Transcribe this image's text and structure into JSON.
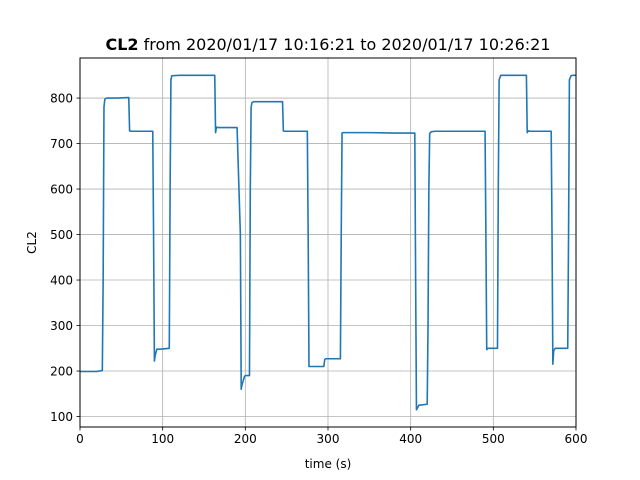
{
  "chart_data": {
    "type": "line",
    "title_bold": "CL2",
    "title_rest": " from 2020/01/17 10:16:21 to 2020/01/17 10:26:21",
    "xlabel": "time (s)",
    "ylabel": "CL2",
    "xlim": [
      0,
      600
    ],
    "ylim": [
      77,
      888
    ],
    "grid": true,
    "line_color": "#1f77b4",
    "x_ticks": [
      0,
      100,
      200,
      300,
      400,
      500,
      600
    ],
    "y_ticks": [
      100,
      200,
      300,
      400,
      500,
      600,
      700,
      800
    ],
    "series": [
      {
        "x": [
          0,
          20,
          27,
          28,
          29,
          30,
          31,
          33,
          45,
          59,
          60,
          62,
          88,
          89,
          90,
          91,
          93,
          97,
          108,
          109,
          110,
          111,
          120,
          140,
          163,
          164,
          165,
          167,
          190,
          194,
          195,
          196,
          199,
          200,
          201,
          205,
          206,
          207,
          208,
          210,
          230,
          245,
          246,
          247,
          249,
          275,
          276,
          277,
          278,
          282,
          295,
          296,
          297,
          300,
          315,
          316,
          317,
          318,
          320,
          350,
          380,
          405,
          406,
          407,
          410,
          420,
          421,
          422,
          423,
          425,
          430,
          460,
          490,
          491,
          492,
          493,
          495,
          505,
          506,
          507,
          509,
          520,
          540,
          541,
          542,
          544,
          570,
          571,
          572,
          573,
          575,
          580,
          590,
          591,
          592,
          594,
          596,
          600
        ],
        "y": [
          199,
          199,
          201,
          400,
          780,
          797,
          799,
          800,
          800,
          801,
          728,
          727,
          727,
          500,
          222,
          235,
          248,
          248,
          250,
          600,
          840,
          849,
          850,
          850,
          850,
          724,
          736,
          735,
          735,
          500,
          160,
          170,
          188,
          190,
          190,
          190,
          600,
          780,
          790,
          792,
          792,
          792,
          728,
          727,
          727,
          727,
          500,
          210,
          210,
          210,
          210,
          225,
          227,
          227,
          227,
          500,
          723,
          724,
          724,
          724,
          723,
          723,
          400,
          115,
          125,
          127,
          300,
          600,
          722,
          726,
          727,
          727,
          727,
          500,
          247,
          250,
          250,
          250,
          600,
          840,
          850,
          850,
          850,
          724,
          728,
          727,
          727,
          500,
          215,
          245,
          250,
          250,
          250,
          500,
          840,
          849,
          850,
          850
        ]
      }
    ]
  }
}
